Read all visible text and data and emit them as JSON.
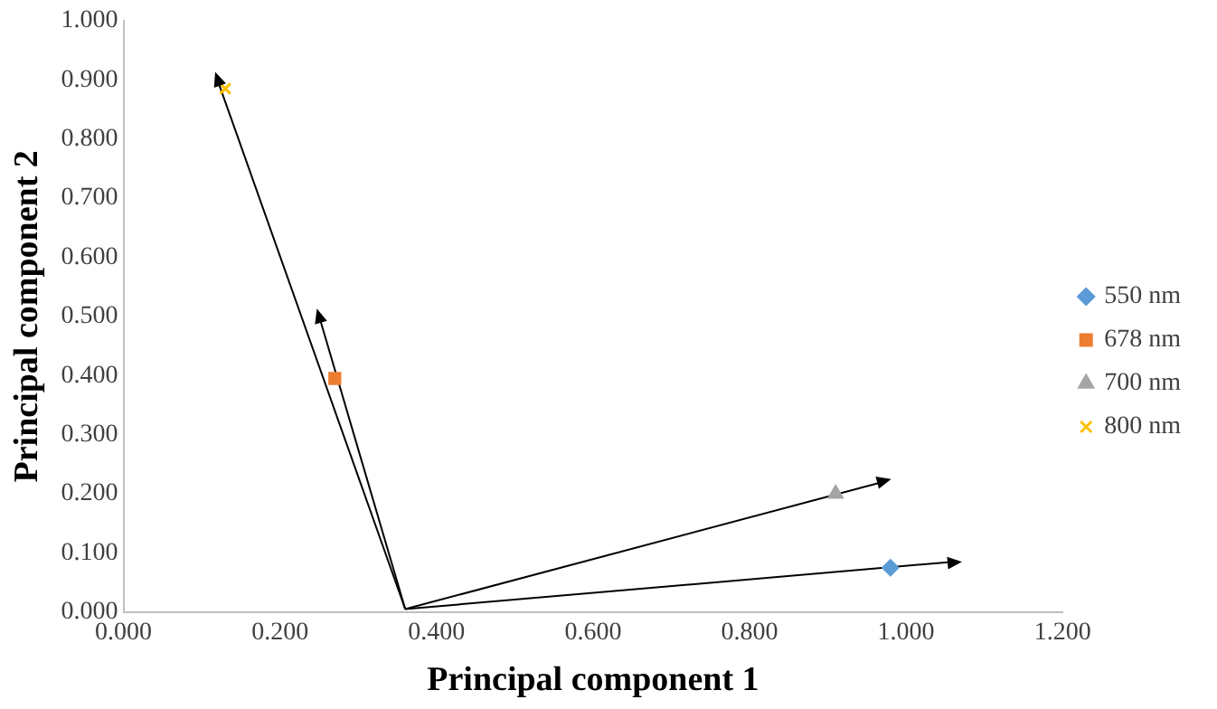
{
  "chart_data": {
    "type": "scatter",
    "xlabel": "Principal component 1",
    "ylabel": "Principal component 2",
    "xlim": [
      0,
      1.2
    ],
    "ylim": [
      0,
      1
    ],
    "xticks": [
      {
        "value": 0,
        "label": "0.000"
      },
      {
        "value": 0.2,
        "label": "0.200"
      },
      {
        "value": 0.4,
        "label": "0.400"
      },
      {
        "value": 0.6,
        "label": "0.600"
      },
      {
        "value": 0.8,
        "label": "0.800"
      },
      {
        "value": 1,
        "label": "1.000"
      },
      {
        "value": 1.2,
        "label": "1.200"
      }
    ],
    "yticks": [
      {
        "value": 0,
        "label": "0.000"
      },
      {
        "value": 0.1,
        "label": "0.100"
      },
      {
        "value": 0.2,
        "label": "0.200"
      },
      {
        "value": 0.3,
        "label": "0.300"
      },
      {
        "value": 0.4,
        "label": "0.400"
      },
      {
        "value": 0.5,
        "label": "0.500"
      },
      {
        "value": 0.6,
        "label": "0.600"
      },
      {
        "value": 0.7,
        "label": "0.700"
      },
      {
        "value": 0.8,
        "label": "0.800"
      },
      {
        "value": 0.9,
        "label": "0.900"
      },
      {
        "value": 1,
        "label": "1.000"
      }
    ],
    "grid": false,
    "legend": "right",
    "series": [
      {
        "name": "550 nm",
        "color": "#5b9bd5",
        "marker": "diamond",
        "x": [
          0.98
        ],
        "values": [
          0.075
        ]
      },
      {
        "name": "678 nm",
        "color": "#ed7d31",
        "marker": "square",
        "x": [
          0.27
        ],
        "values": [
          0.395
        ]
      },
      {
        "name": "700 nm",
        "color": "#a5a5a5",
        "marker": "triangle",
        "x": [
          0.91
        ],
        "values": [
          0.2
        ]
      },
      {
        "name": "800 nm",
        "color": "#ffc000",
        "marker": "cross",
        "x": [
          0.13
        ],
        "values": [
          0.885
        ]
      },
      {
        "type": "line",
        "color": "#000000",
        "x": [
          0.36,
          1.06
        ],
        "values": [
          0.005,
          0.085
        ]
      },
      {
        "type": "line",
        "color": "#000000",
        "x": [
          0.36,
          0.97
        ],
        "values": [
          0.005,
          0.22
        ]
      },
      {
        "type": "line",
        "color": "#000000",
        "x": [
          0.36,
          0.25
        ],
        "values": [
          0.005,
          0.5
        ]
      },
      {
        "type": "line",
        "color": "#000000",
        "x": [
          0.36,
          0.12
        ],
        "values": [
          0.005,
          0.9
        ]
      }
    ]
  }
}
